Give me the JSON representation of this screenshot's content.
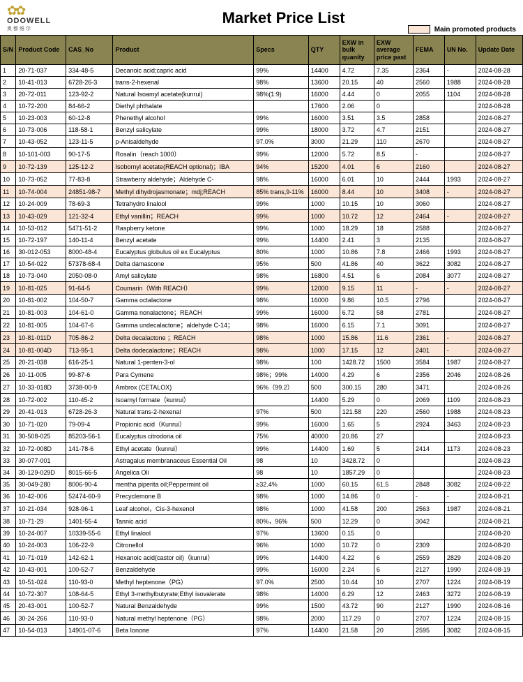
{
  "brand": {
    "name": "ODOWELL",
    "sub": "奥都维尔"
  },
  "title": "Market Price List",
  "legend": {
    "label": "Main promoted products",
    "color": "#fbe5d6"
  },
  "table": {
    "header_bg": "#8a8452",
    "promoted_bg": "#fbe5d6",
    "columns": [
      "S/N",
      "Product Code",
      "CAS_No",
      "Product",
      "Specs",
      "QTY",
      "EXW in bulk quanity",
      "EXW average price past",
      "FEMA",
      "UN No.",
      "Update Date"
    ],
    "rows": [
      {
        "p": false,
        "c": [
          "1",
          "20-71-037",
          "334-48-5",
          "Decanoic acid;capric acid",
          "99%",
          "14400",
          "4.72",
          "7.35",
          "2364",
          "-",
          "2024-08-28"
        ]
      },
      {
        "p": false,
        "c": [
          "2",
          "10-41-013",
          "6728-26-3",
          "trans-2-hexenal",
          "98%",
          "13600",
          "20.15",
          "40",
          "2560",
          "1988",
          "2024-08-28"
        ]
      },
      {
        "p": false,
        "c": [
          "3",
          "20-72-011",
          "123-92-2",
          "Natural Isoamyl acetate(kunrui)",
          "98%(1:9)",
          "16000",
          "4.44",
          "0",
          "2055",
          "1104",
          "2024-08-28"
        ]
      },
      {
        "p": false,
        "c": [
          "4",
          "10-72-200",
          "84-66-2",
          "Diethyl phthalate",
          "",
          "17600",
          "2.06",
          "0",
          "",
          "",
          "2024-08-28"
        ]
      },
      {
        "p": false,
        "c": [
          "5",
          "10-23-003",
          "60-12-8",
          "Phenethyl alcohol",
          "99%",
          "16000",
          "3.51",
          "3.5",
          "2858",
          "",
          "2024-08-27"
        ]
      },
      {
        "p": false,
        "c": [
          "6",
          "10-73-006",
          "118-58-1",
          "Benzyl salicylate",
          "99%",
          "18000",
          "3.72",
          "4.7",
          "2151",
          "",
          "2024-08-27"
        ]
      },
      {
        "p": false,
        "c": [
          "7",
          "10-43-052",
          "123-11-5",
          "p-Anisaldehyde",
          "97.0%",
          "3000",
          "21.29",
          "110",
          "2670",
          "",
          "2024-08-27"
        ]
      },
      {
        "p": false,
        "c": [
          "8",
          "10-101-003",
          "90-17-5",
          "Rosalin（reach 1000）",
          "99%",
          "12000",
          "5.72",
          "8.5",
          "-",
          "",
          "2024-08-27"
        ]
      },
      {
        "p": true,
        "c": [
          "9",
          "10-72-139",
          "125-12-2",
          "Isobornyl acetate(REACH optional)；IBA",
          "94%",
          "15200",
          "4.01",
          "6",
          "2160",
          "",
          "2024-08-27"
        ]
      },
      {
        "p": false,
        "c": [
          "10",
          "10-73-052",
          "77-83-8",
          "Strawberry aldehyde；Aldehyde C-",
          "98%",
          "16000",
          "6.01",
          "10",
          "2444",
          "1993",
          "2024-08-27"
        ]
      },
      {
        "p": true,
        "c": [
          "11",
          "10-74-004",
          "24851-98-7",
          "Methyl dihydrojasmonate；mdj;REACH",
          "85% trans,9-11%",
          "16000",
          "8.44",
          "10",
          "3408",
          "-",
          "2024-08-27"
        ]
      },
      {
        "p": false,
        "c": [
          "12",
          "10-24-009",
          "78-69-3",
          "Tetrahydro linalool",
          "99%",
          "1000",
          "10.15",
          "10",
          "3060",
          "",
          "2024-08-27"
        ]
      },
      {
        "p": true,
        "c": [
          "13",
          "10-43-029",
          "121-32-4",
          "Ethyl vanillin；REACH",
          "99%",
          "1000",
          "10.72",
          "12",
          "2464",
          "-",
          "2024-08-27"
        ]
      },
      {
        "p": false,
        "c": [
          "14",
          "10-53-012",
          "5471-51-2",
          "Raspberry ketone",
          "99%",
          "1000",
          "18.29",
          "18",
          "2588",
          "",
          "2024-08-27"
        ]
      },
      {
        "p": false,
        "c": [
          "15",
          "10-72-197",
          "140-11-4",
          "Benzyl acetate",
          "99%",
          "14400",
          "2.41",
          "3",
          "2135",
          "",
          "2024-08-27"
        ]
      },
      {
        "p": false,
        "c": [
          "16",
          "30-012-053",
          "8000-48-4",
          "Eucalyptus globulus oil ex Eucalyptus",
          "80%",
          "1000",
          "10.86",
          "7.8",
          "2466",
          "1993",
          "2024-08-27"
        ]
      },
      {
        "p": false,
        "c": [
          "17",
          "10-54-022",
          "57378-68-4",
          "Delta damascone",
          "95%",
          "500",
          "41.86",
          "40",
          "3622",
          "3082",
          "2024-08-27"
        ]
      },
      {
        "p": false,
        "c": [
          "18",
          "10-73-040",
          "2050-08-0",
          "Amyl salicylate",
          "98%",
          "16800",
          "4.51",
          "6",
          "2084",
          "3077",
          "2024-08-27"
        ]
      },
      {
        "p": true,
        "c": [
          "19",
          "10-81-025",
          "91-64-5",
          "Coumarin（With REACH）",
          "99%",
          "12000",
          "9.15",
          "11",
          "-",
          "-",
          "2024-08-27"
        ]
      },
      {
        "p": false,
        "c": [
          "20",
          "10-81-002",
          "104-50-7",
          "Gamma octalactone",
          "98%",
          "16000",
          "9.86",
          "10.5",
          "2796",
          "",
          "2024-08-27"
        ]
      },
      {
        "p": false,
        "c": [
          "21",
          "10-81-003",
          "104-61-0",
          "Gamma nonalactone；REACH",
          "99%",
          "16000",
          "6.72",
          "58",
          "2781",
          "",
          "2024-08-27"
        ]
      },
      {
        "p": false,
        "c": [
          "22",
          "10-81-005",
          "104-67-6",
          "Gamma undecalactone；aldehyde C-14；",
          "98%",
          "16000",
          "6.15",
          "7.1",
          "3091",
          "",
          "2024-08-27"
        ]
      },
      {
        "p": true,
        "c": [
          "23",
          "10-81-011D",
          "705-86-2",
          "Delta decalactone ；REACH",
          "98%",
          "1000",
          "15.86",
          "11.6",
          "2361",
          "-",
          "2024-08-27"
        ]
      },
      {
        "p": true,
        "c": [
          "24",
          "10-81-004D",
          "713-95-1",
          "Delta dodecalactone；REACH",
          "98%",
          "1000",
          "17.15",
          "12",
          "2401",
          "-",
          "2024-08-27"
        ]
      },
      {
        "p": false,
        "c": [
          "25",
          "20-21-038",
          "616-25-1",
          "Natural 1-penten-3-ol",
          "98%",
          "100",
          "1428.72",
          "1500",
          "3584",
          "1987",
          "2024-08-27"
        ]
      },
      {
        "p": false,
        "c": [
          "26",
          "10-11-005",
          "99-87-6",
          "Para Cymene",
          "98%；99%",
          "14000",
          "4.29",
          "6",
          "2356",
          "2046",
          "2024-08-26"
        ]
      },
      {
        "p": false,
        "c": [
          "27",
          "10-33-018D",
          "3738-00-9",
          "Ambrox (CETALOX)",
          "96%（99.2）",
          "500",
          "300.15",
          "280",
          "3471",
          "",
          "2024-08-26"
        ]
      },
      {
        "p": false,
        "c": [
          "28",
          "10-72-002",
          "110-45-2",
          "Isoamyl formate（kunrui）",
          "",
          "14400",
          "5.29",
          "0",
          "2069",
          "1109",
          "2024-08-23"
        ]
      },
      {
        "p": false,
        "c": [
          "29",
          "20-41-013",
          "6728-26-3",
          "Natural trans-2-hexenal",
          "97%",
          "500",
          "121.58",
          "220",
          "2560",
          "1988",
          "2024-08-23"
        ]
      },
      {
        "p": false,
        "c": [
          "30",
          "10-71-020",
          "79-09-4",
          "Propionic acid（Kunrui）",
          "99%",
          "16000",
          "1.65",
          "5",
          "2924",
          "3463",
          "2024-08-23"
        ]
      },
      {
        "p": false,
        "c": [
          "31",
          "30-508-025",
          "85203-56-1",
          "Eucalyptus citrodoria oil",
          "75%",
          "40000",
          "20.86",
          "27",
          "",
          "",
          "2024-08-23"
        ]
      },
      {
        "p": false,
        "c": [
          "32",
          "10-72-008D",
          "141-78-6",
          "Ethyl acetate（kunrui）",
          "99%",
          "14400",
          "1.69",
          "5",
          "2414",
          "1173",
          "2024-08-23"
        ]
      },
      {
        "p": false,
        "c": [
          "33",
          "30-077-001",
          "",
          "Astragalus membranaceus Essential Oil",
          "98",
          "10",
          "3428.72",
          "0",
          "",
          "",
          "2024-08-23"
        ]
      },
      {
        "p": false,
        "c": [
          "34",
          "30-129-029D",
          "8015-66-5",
          "Angelica Oli",
          "98",
          "10",
          "1857.29",
          "0",
          "",
          "",
          "2024-08-23"
        ]
      },
      {
        "p": false,
        "c": [
          "35",
          "30-049-280",
          "8006-90-4",
          "mentha piperita oil;Peppermint oil",
          "≥32.4%",
          "1000",
          "60.15",
          "61.5",
          "2848",
          "3082",
          "2024-08-22"
        ]
      },
      {
        "p": false,
        "c": [
          "36",
          "10-42-006",
          "52474-60-9",
          "Precyclemone B",
          "98%",
          "1000",
          "14.86",
          "0",
          "-",
          "-",
          "2024-08-21"
        ]
      },
      {
        "p": false,
        "c": [
          "37",
          "10-21-034",
          "928-96-1",
          "Leaf alcohol，Cis-3-hexenol",
          "98%",
          "1000",
          "41.58",
          "200",
          "2563",
          "1987",
          "2024-08-21"
        ]
      },
      {
        "p": false,
        "c": [
          "38",
          "10-71-29",
          "1401-55-4",
          "Tannic acid",
          "80%，96%",
          "500",
          "12.29",
          "0",
          "3042",
          "",
          "2024-08-21"
        ]
      },
      {
        "p": false,
        "c": [
          "39",
          "10-24-007",
          "10339-55-6",
          "Ethyl linalool",
          "97%",
          "13600",
          "0.15",
          "0",
          "",
          "",
          "2024-08-20"
        ]
      },
      {
        "p": false,
        "c": [
          "40",
          "10-24-003",
          "106-22-9",
          "Citronellol",
          "96%",
          "1000",
          "10.72",
          "0",
          "2309",
          "",
          "2024-08-20"
        ]
      },
      {
        "p": false,
        "c": [
          "41",
          "10-71-019",
          "142-62-1",
          "Hexanoic acid(castor oil)（kunrui）",
          "99%",
          "14400",
          "4.22",
          "6",
          "2559",
          "2829",
          "2024-08-20"
        ]
      },
      {
        "p": false,
        "c": [
          "42",
          "10-43-001",
          "100-52-7",
          "Benzaldehyde",
          "99%",
          "16000",
          "2.24",
          "6",
          "2127",
          "1990",
          "2024-08-19"
        ]
      },
      {
        "p": false,
        "c": [
          "43",
          "10-51-024",
          "110-93-0",
          "Methyl heptenone（PG）",
          "97.0%",
          "2500",
          "10.44",
          "10",
          "2707",
          "1224",
          "2024-08-19"
        ]
      },
      {
        "p": false,
        "c": [
          "44",
          "10-72-307",
          "108-64-5",
          "Ethyl 3-methylbutyrate;Ethyl isovalerate",
          "98%",
          "14000",
          "6.29",
          "12",
          "2463",
          "3272",
          "2024-08-19"
        ]
      },
      {
        "p": false,
        "c": [
          "45",
          "20-43-001",
          "100-52-7",
          "Natural Benzaldehyde",
          "99%",
          "1500",
          "43.72",
          "90",
          "2127",
          "1990",
          "2024-08-16"
        ]
      },
      {
        "p": false,
        "c": [
          "46",
          "30-24-266",
          "110-93-0",
          "Natural methyl heptenone（PG）",
          "98%",
          "2000",
          "117.29",
          "0",
          "2707",
          "1224",
          "2024-08-15"
        ]
      },
      {
        "p": false,
        "c": [
          "47",
          "10-54-013",
          "14901-07-6",
          "Beta Ionone",
          "97%",
          "14400",
          "21.58",
          "20",
          "2595",
          "3082",
          "2024-08-15"
        ]
      }
    ]
  }
}
